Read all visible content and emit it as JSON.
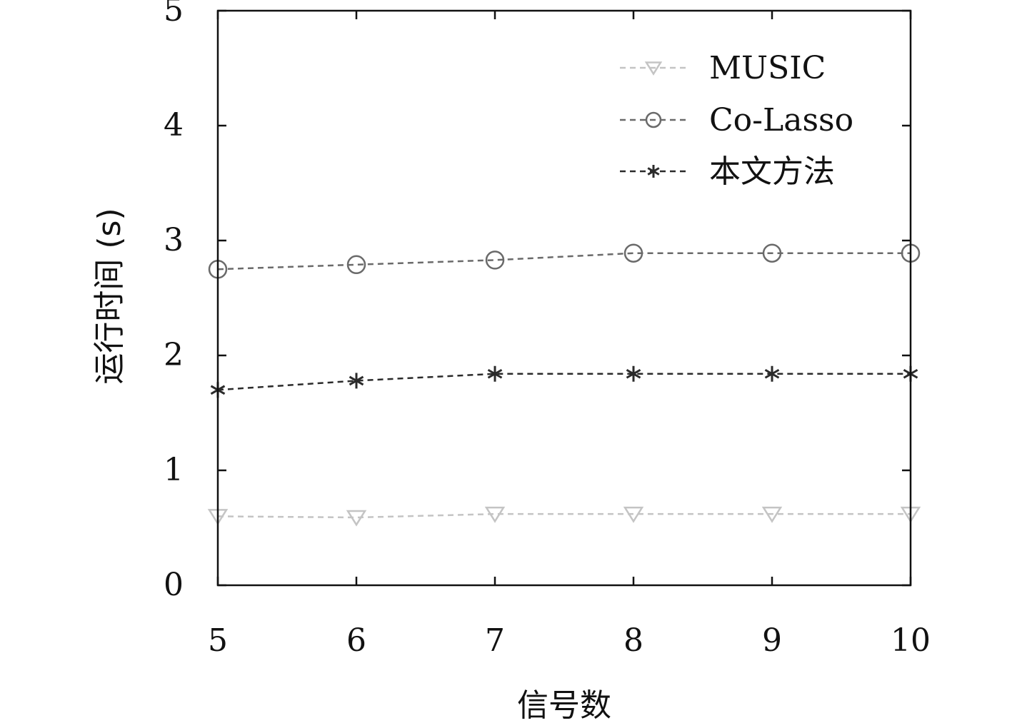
{
  "chart_data": {
    "type": "line",
    "title": "",
    "xlabel": "信号数",
    "ylabel": "运行时间 (s)",
    "x": [
      5,
      6,
      7,
      8,
      9,
      10
    ],
    "xticks": [
      "5",
      "6",
      "7",
      "8",
      "9",
      "10"
    ],
    "yticks": [
      "0",
      "1",
      "2",
      "3",
      "4",
      "5"
    ],
    "xlim": [
      5,
      10
    ],
    "ylim": [
      0,
      5
    ],
    "grid": false,
    "legend_position": "top-right",
    "series": [
      {
        "name": "MUSIC",
        "values": [
          0.6,
          0.59,
          0.62,
          0.62,
          0.62,
          0.62
        ],
        "marker": "triangle-down",
        "color": "#c4c4c4"
      },
      {
        "name": "Co-Lasso",
        "values": [
          2.75,
          2.79,
          2.83,
          2.89,
          2.89,
          2.89
        ],
        "marker": "circle",
        "color": "#6a6a6a"
      },
      {
        "name": "本文方法",
        "values": [
          1.7,
          1.78,
          1.84,
          1.84,
          1.84,
          1.84
        ],
        "marker": "star",
        "color": "#2b2b2b"
      }
    ]
  }
}
